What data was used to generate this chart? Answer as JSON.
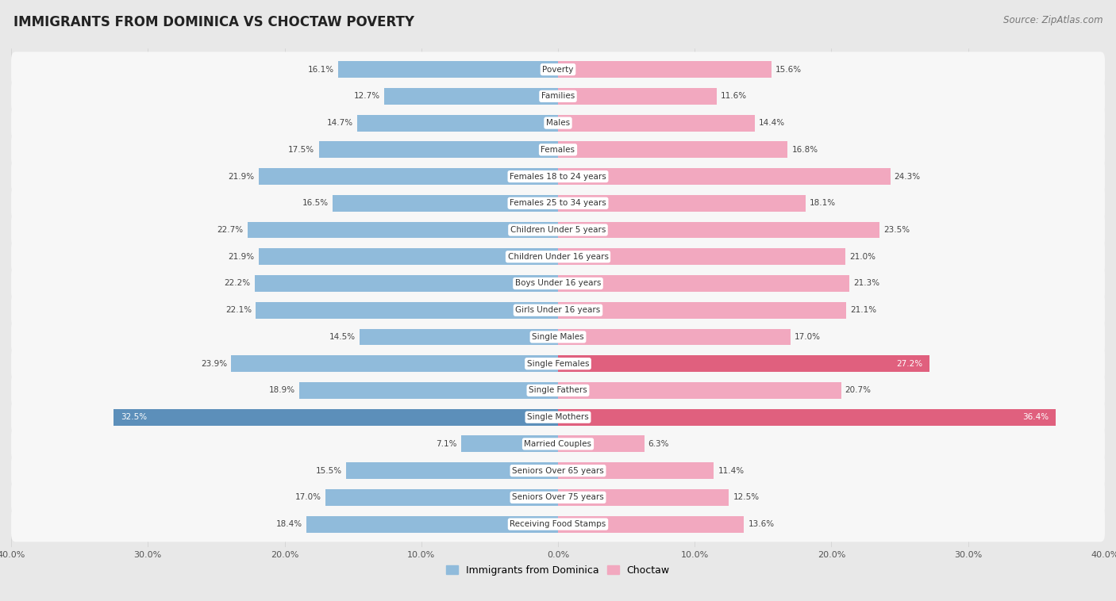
{
  "title": "IMMIGRANTS FROM DOMINICA VS CHOCTAW POVERTY",
  "source": "Source: ZipAtlas.com",
  "categories": [
    "Poverty",
    "Families",
    "Males",
    "Females",
    "Females 18 to 24 years",
    "Females 25 to 34 years",
    "Children Under 5 years",
    "Children Under 16 years",
    "Boys Under 16 years",
    "Girls Under 16 years",
    "Single Males",
    "Single Females",
    "Single Fathers",
    "Single Mothers",
    "Married Couples",
    "Seniors Over 65 years",
    "Seniors Over 75 years",
    "Receiving Food Stamps"
  ],
  "left_values": [
    16.1,
    12.7,
    14.7,
    17.5,
    21.9,
    16.5,
    22.7,
    21.9,
    22.2,
    22.1,
    14.5,
    23.9,
    18.9,
    32.5,
    7.1,
    15.5,
    17.0,
    18.4
  ],
  "right_values": [
    15.6,
    11.6,
    14.4,
    16.8,
    24.3,
    18.1,
    23.5,
    21.0,
    21.3,
    21.1,
    17.0,
    27.2,
    20.7,
    36.4,
    6.3,
    11.4,
    12.5,
    13.6
  ],
  "left_color": "#90bbdb",
  "right_color": "#f2a8bf",
  "highlight_left_color": "#5c8fba",
  "highlight_right_color": "#e0607e",
  "left_label": "Immigrants from Dominica",
  "right_label": "Choctaw",
  "axis_limit": 40.0,
  "background_color": "#e8e8e8",
  "bar_background": "#f7f7f7",
  "title_fontsize": 12,
  "source_fontsize": 8.5,
  "label_fontsize": 7.5,
  "value_fontsize": 7.5,
  "bar_height": 0.62,
  "highlight_threshold": 25.0
}
